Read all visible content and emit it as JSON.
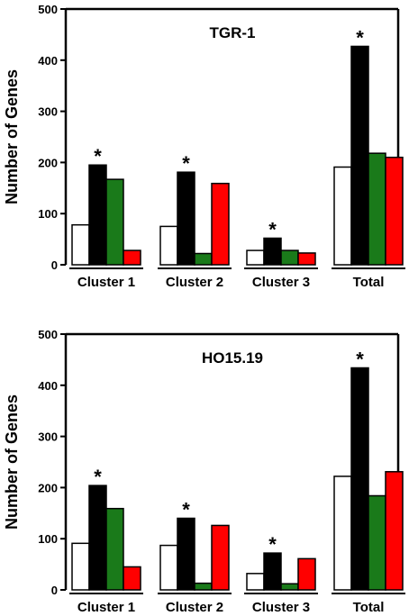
{
  "chart_data": [
    {
      "type": "bar",
      "title": "TGR-1",
      "ylabel": "Number of Genes",
      "xlabel": "",
      "ylim": [
        0,
        500
      ],
      "yticks": [
        0,
        100,
        200,
        300,
        400,
        500
      ],
      "categories": [
        "Cluster 1",
        "Cluster 2",
        "Cluster 3",
        "Total"
      ],
      "series": [
        {
          "color": "#ffffff",
          "values": [
            78,
            75,
            28,
            191
          ]
        },
        {
          "color": "#000000",
          "values": [
            195,
            181,
            52,
            427
          ]
        },
        {
          "color": "#1a7a1a",
          "values": [
            167,
            22,
            28,
            218
          ]
        },
        {
          "color": "#ff0000",
          "values": [
            28,
            159,
            23,
            210
          ]
        }
      ],
      "annotations": [
        {
          "text": "*",
          "category": "Cluster 1"
        },
        {
          "text": "*",
          "category": "Cluster 2"
        },
        {
          "text": "*",
          "category": "Cluster 3"
        },
        {
          "text": "*",
          "category": "Total"
        }
      ],
      "grid": false,
      "legend": "none"
    },
    {
      "type": "bar",
      "title": "HO15.19",
      "ylabel": "Number of Genes",
      "xlabel": "",
      "ylim": [
        0,
        500
      ],
      "yticks": [
        0,
        100,
        200,
        300,
        400,
        500
      ],
      "categories": [
        "Cluster 1",
        "Cluster 2",
        "Cluster 3",
        "Total"
      ],
      "series": [
        {
          "color": "#ffffff",
          "values": [
            91,
            87,
            32,
            222
          ]
        },
        {
          "color": "#000000",
          "values": [
            204,
            140,
            72,
            434
          ]
        },
        {
          "color": "#1a7a1a",
          "values": [
            159,
            13,
            12,
            184
          ]
        },
        {
          "color": "#ff0000",
          "values": [
            45,
            126,
            61,
            231
          ]
        }
      ],
      "annotations": [
        {
          "text": "*",
          "category": "Cluster 1"
        },
        {
          "text": "*",
          "category": "Cluster 2"
        },
        {
          "text": "*",
          "category": "Cluster 3"
        },
        {
          "text": "*",
          "category": "Total"
        }
      ],
      "grid": false,
      "legend": "none"
    }
  ]
}
